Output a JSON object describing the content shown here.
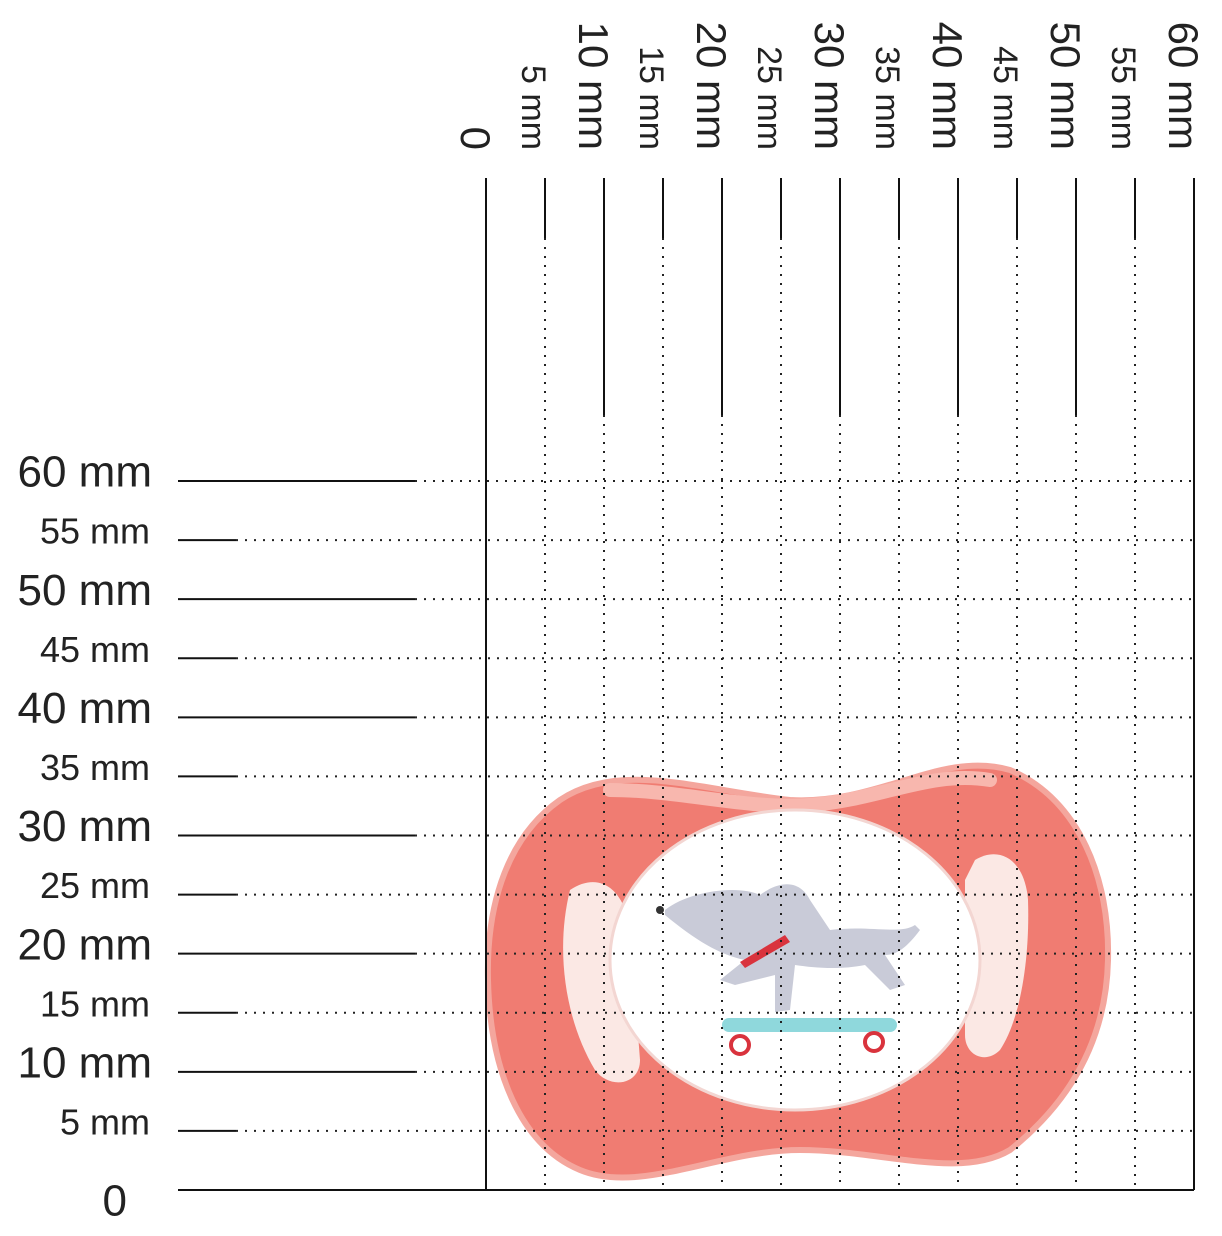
{
  "x_ruler": {
    "labels": [
      "0",
      "5 mm",
      "10 mm",
      "15 mm",
      "20 mm",
      "25 mm",
      "30 mm",
      "35 mm",
      "40 mm",
      "45 mm",
      "50 mm",
      "55 mm",
      "60 mm"
    ]
  },
  "y_ruler": {
    "labels": [
      "0",
      "5 mm",
      "10 mm",
      "15 mm",
      "20 mm",
      "25 mm",
      "30 mm",
      "35 mm",
      "40 mm",
      "45 mm",
      "50 mm",
      "55 mm",
      "60 mm"
    ]
  }
}
